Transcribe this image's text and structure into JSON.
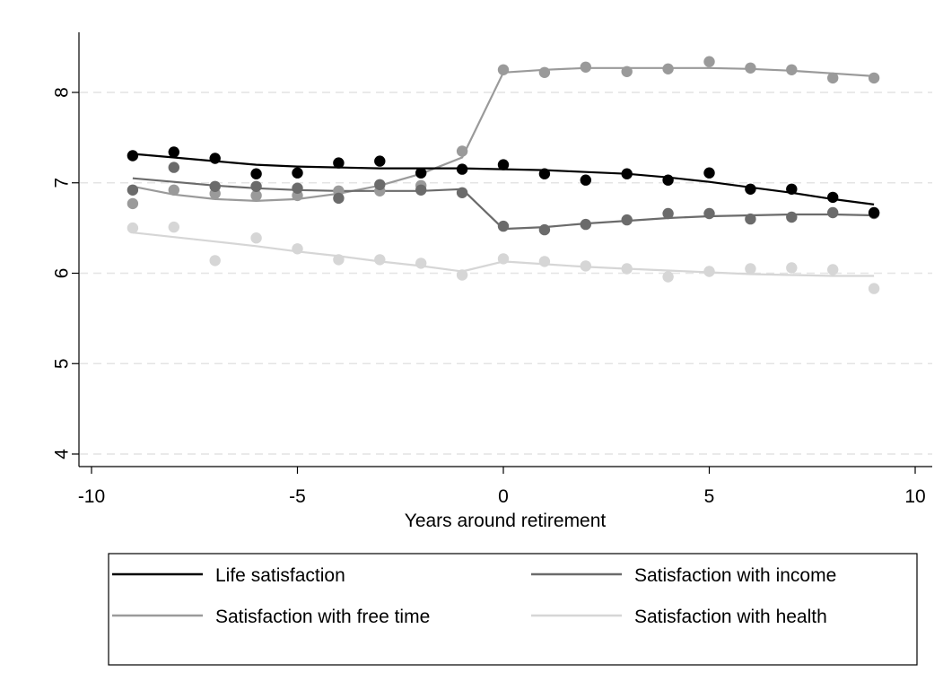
{
  "chart_data": {
    "type": "line",
    "title": "",
    "xlabel": "Years around retirement",
    "ylabel": "",
    "xlim": [
      -10,
      10
    ],
    "ylim": [
      4,
      8
    ],
    "xticks": [
      -10,
      -5,
      0,
      5,
      10
    ],
    "yticks": [
      4,
      5,
      6,
      7,
      8
    ],
    "grid": "horizontal dashed",
    "legend_placement": "bottom",
    "x": [
      -9,
      -8,
      -7,
      -6,
      -5,
      -4,
      -3,
      -2,
      -1,
      0,
      1,
      2,
      3,
      4,
      5,
      6,
      7,
      8,
      9
    ],
    "series": [
      {
        "name": "Life satisfaction",
        "color": "#000000",
        "points": [
          7.3,
          7.34,
          7.27,
          7.1,
          7.11,
          7.22,
          7.24,
          7.11,
          7.15,
          7.2,
          7.1,
          7.03,
          7.1,
          7.03,
          7.11,
          6.93,
          6.93,
          6.84,
          6.67
        ],
        "fit": [
          7.32,
          7.28,
          7.24,
          7.2,
          7.18,
          7.17,
          7.16,
          7.16,
          7.16,
          7.15,
          7.14,
          7.12,
          7.1,
          7.06,
          7.01,
          6.95,
          6.89,
          6.82,
          6.76
        ]
      },
      {
        "name": "Satisfaction with income",
        "color": "#6b6b6b",
        "points": [
          6.92,
          7.17,
          6.96,
          6.96,
          6.94,
          6.83,
          6.98,
          6.92,
          6.89,
          6.52,
          6.48,
          6.54,
          6.59,
          6.66,
          6.66,
          6.6,
          6.62,
          6.67,
          6.66
        ],
        "fit": [
          7.05,
          7.01,
          6.97,
          6.94,
          6.92,
          6.91,
          6.91,
          6.91,
          6.93,
          6.49,
          6.51,
          6.55,
          6.58,
          6.61,
          6.63,
          6.64,
          6.65,
          6.65,
          6.64
        ]
      },
      {
        "name": "Satisfaction with free time",
        "color": "#9a9a9a",
        "points": [
          6.77,
          6.92,
          6.88,
          6.86,
          6.86,
          6.91,
          6.91,
          6.97,
          7.35,
          8.25,
          8.22,
          8.28,
          8.23,
          8.26,
          8.34,
          8.27,
          8.25,
          8.16,
          8.16
        ],
        "fit": [
          6.96,
          6.87,
          6.82,
          6.8,
          6.82,
          6.88,
          6.97,
          7.1,
          7.28,
          8.22,
          8.25,
          8.27,
          8.27,
          8.27,
          8.27,
          8.26,
          8.24,
          8.21,
          8.18
        ]
      },
      {
        "name": "Satisfaction with health",
        "color": "#d6d6d6",
        "points": [
          6.5,
          6.51,
          6.14,
          6.39,
          6.27,
          6.15,
          6.15,
          6.11,
          5.98,
          6.16,
          6.13,
          6.08,
          6.05,
          5.96,
          6.02,
          6.05,
          6.06,
          6.04,
          5.83
        ],
        "fit": [
          6.45,
          6.4,
          6.35,
          6.3,
          6.24,
          6.19,
          6.13,
          6.08,
          6.02,
          6.13,
          6.1,
          6.07,
          6.05,
          6.03,
          6.01,
          5.99,
          5.98,
          5.97,
          5.97
        ]
      }
    ]
  }
}
